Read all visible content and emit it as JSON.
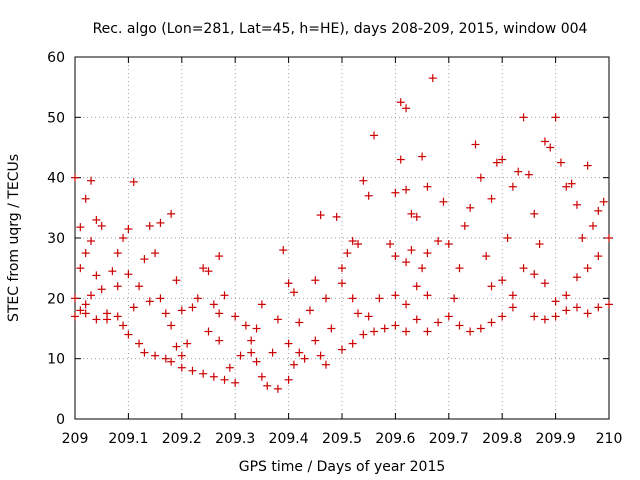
{
  "chart_data": {
    "type": "scatter",
    "title": "Rec. algo (Lon=281, Lat=45, h=HE), days 208-209, 2015, window 004",
    "xlabel": "GPS time / Days of year 2015",
    "ylabel": "STEC from uqrg / TECUs",
    "xlim": [
      209,
      210
    ],
    "ylim": [
      0,
      60
    ],
    "xticks": [
      "209",
      "209.1",
      "209.2",
      "209.3",
      "209.4",
      "209.5",
      "209.6",
      "209.7",
      "209.8",
      "209.9",
      "210"
    ],
    "yticks": [
      "0",
      "10",
      "20",
      "30",
      "40",
      "50",
      "60"
    ],
    "xtick_values": [
      209,
      209.1,
      209.2,
      209.3,
      209.4,
      209.5,
      209.6,
      209.7,
      209.8,
      209.9,
      210
    ],
    "ytick_values": [
      0,
      10,
      20,
      30,
      40,
      50,
      60
    ],
    "grid": true,
    "marker": "+",
    "color": "#cc0000",
    "series": [
      {
        "points": [
          [
            209.0,
            40.0
          ],
          [
            209.01,
            31.8
          ],
          [
            209.02,
            36.5
          ],
          [
            209.03,
            39.5
          ],
          [
            209.04,
            33.0
          ],
          [
            209.01,
            25.0
          ],
          [
            209.02,
            27.5
          ],
          [
            209.03,
            29.5
          ],
          [
            209.05,
            32.0
          ],
          [
            209.04,
            23.8
          ],
          [
            209.0,
            20.0
          ],
          [
            209.01,
            18.0
          ],
          [
            209.02,
            19.0
          ],
          [
            209.03,
            20.5
          ],
          [
            209.05,
            21.5
          ],
          [
            209.0,
            17.0
          ],
          [
            209.02,
            17.5
          ],
          [
            209.04,
            16.5
          ],
          [
            209.06,
            16.5
          ],
          [
            209.07,
            24.5
          ],
          [
            209.08,
            27.5
          ],
          [
            209.09,
            30.0
          ],
          [
            209.1,
            31.5
          ],
          [
            209.08,
            22.0
          ],
          [
            209.1,
            24.0
          ],
          [
            209.06,
            17.5
          ],
          [
            209.08,
            17.0
          ],
          [
            209.09,
            15.5
          ],
          [
            209.1,
            14.0
          ],
          [
            209.11,
            18.5
          ],
          [
            209.11,
            39.3
          ],
          [
            209.12,
            22.0
          ],
          [
            209.13,
            26.5
          ],
          [
            209.14,
            32.0
          ],
          [
            209.15,
            27.5
          ],
          [
            209.16,
            32.5
          ],
          [
            209.14,
            19.5
          ],
          [
            209.16,
            20.0
          ],
          [
            209.17,
            17.5
          ],
          [
            209.12,
            12.5
          ],
          [
            209.13,
            11.0
          ],
          [
            209.15,
            10.5
          ],
          [
            209.17,
            10.0
          ],
          [
            209.18,
            34.0
          ],
          [
            209.19,
            23.0
          ],
          [
            209.2,
            18.0
          ],
          [
            209.18,
            15.5
          ],
          [
            209.19,
            12.0
          ],
          [
            209.21,
            12.5
          ],
          [
            209.2,
            10.5
          ],
          [
            209.18,
            9.5
          ],
          [
            209.2,
            8.5
          ],
          [
            209.22,
            8.0
          ],
          [
            209.24,
            7.5
          ],
          [
            209.22,
            18.5
          ],
          [
            209.23,
            20.0
          ],
          [
            209.24,
            25.0
          ],
          [
            209.25,
            24.5
          ],
          [
            209.26,
            19.0
          ],
          [
            209.27,
            27.0
          ],
          [
            209.27,
            17.5
          ],
          [
            209.28,
            20.5
          ],
          [
            209.25,
            14.5
          ],
          [
            209.27,
            13.0
          ],
          [
            209.26,
            7.0
          ],
          [
            209.28,
            6.5
          ],
          [
            209.3,
            6.0
          ],
          [
            209.29,
            8.5
          ],
          [
            209.31,
            10.5
          ],
          [
            209.33,
            13.0
          ],
          [
            209.3,
            17.0
          ],
          [
            209.32,
            15.5
          ],
          [
            209.34,
            15.0
          ],
          [
            209.35,
            19.0
          ],
          [
            209.33,
            11.0
          ],
          [
            209.34,
            9.5
          ],
          [
            209.35,
            7.0
          ],
          [
            209.36,
            5.5
          ],
          [
            209.38,
            5.0
          ],
          [
            209.37,
            11.0
          ],
          [
            209.38,
            16.5
          ],
          [
            209.39,
            28.0
          ],
          [
            209.4,
            22.5
          ],
          [
            209.41,
            21.0
          ],
          [
            209.42,
            16.0
          ],
          [
            209.4,
            12.5
          ],
          [
            209.42,
            11.0
          ],
          [
            209.41,
            9.0
          ],
          [
            209.43,
            10.0
          ],
          [
            209.4,
            6.5
          ],
          [
            209.44,
            18.0
          ],
          [
            209.45,
            23.0
          ],
          [
            209.46,
            33.8
          ],
          [
            209.47,
            20.0
          ],
          [
            209.45,
            13.0
          ],
          [
            209.46,
            10.5
          ],
          [
            209.48,
            15.0
          ],
          [
            209.47,
            9.0
          ],
          [
            209.49,
            33.5
          ],
          [
            209.5,
            25.0
          ],
          [
            209.51,
            27.5
          ],
          [
            209.52,
            29.5
          ],
          [
            209.53,
            29.0
          ],
          [
            209.5,
            22.5
          ],
          [
            209.52,
            20.0
          ],
          [
            209.54,
            39.5
          ],
          [
            209.55,
            37.0
          ],
          [
            209.56,
            47.0
          ],
          [
            209.57,
            20.0
          ],
          [
            209.53,
            17.5
          ],
          [
            209.55,
            17.0
          ],
          [
            209.5,
            11.5
          ],
          [
            209.52,
            12.5
          ],
          [
            209.54,
            14.0
          ],
          [
            209.56,
            14.5
          ],
          [
            209.58,
            15.0
          ],
          [
            209.59,
            29.0
          ],
          [
            209.6,
            37.5
          ],
          [
            209.61,
            52.5
          ],
          [
            209.62,
            51.5
          ],
          [
            209.61,
            43.0
          ],
          [
            209.62,
            38.0
          ],
          [
            209.63,
            34.0
          ],
          [
            209.64,
            33.5
          ],
          [
            209.65,
            43.5
          ],
          [
            209.66,
            38.5
          ],
          [
            209.67,
            56.5
          ],
          [
            209.6,
            27.0
          ],
          [
            209.62,
            26.0
          ],
          [
            209.63,
            28.0
          ],
          [
            209.65,
            25.0
          ],
          [
            209.66,
            27.5
          ],
          [
            209.6,
            20.5
          ],
          [
            209.62,
            19.0
          ],
          [
            209.64,
            22.0
          ],
          [
            209.66,
            20.5
          ],
          [
            209.6,
            15.5
          ],
          [
            209.62,
            14.5
          ],
          [
            209.64,
            16.5
          ],
          [
            209.66,
            14.5
          ],
          [
            209.68,
            29.5
          ],
          [
            209.69,
            36.0
          ],
          [
            209.7,
            29.0
          ],
          [
            209.71,
            20.0
          ],
          [
            209.72,
            25.0
          ],
          [
            209.73,
            32.0
          ],
          [
            209.74,
            35.0
          ],
          [
            209.75,
            45.5
          ],
          [
            209.76,
            40.0
          ],
          [
            209.68,
            16.0
          ],
          [
            209.7,
            17.0
          ],
          [
            209.72,
            15.5
          ],
          [
            209.74,
            14.5
          ],
          [
            209.76,
            15.0
          ],
          [
            209.77,
            27.0
          ],
          [
            209.78,
            36.5
          ],
          [
            209.79,
            42.5
          ],
          [
            209.8,
            43.0
          ],
          [
            209.81,
            30.0
          ],
          [
            209.82,
            38.5
          ],
          [
            209.83,
            41.0
          ],
          [
            209.84,
            50.0
          ],
          [
            209.78,
            22.0
          ],
          [
            209.8,
            23.0
          ],
          [
            209.82,
            20.5
          ],
          [
            209.84,
            25.0
          ],
          [
            209.78,
            16.0
          ],
          [
            209.8,
            17.0
          ],
          [
            209.82,
            18.5
          ],
          [
            209.85,
            40.5
          ],
          [
            209.86,
            34.0
          ],
          [
            209.87,
            29.0
          ],
          [
            209.88,
            46.0
          ],
          [
            209.89,
            45.0
          ],
          [
            209.9,
            50.0
          ],
          [
            209.91,
            42.5
          ],
          [
            209.86,
            24.0
          ],
          [
            209.88,
            22.5
          ],
          [
            209.9,
            19.5
          ],
          [
            209.86,
            17.0
          ],
          [
            209.88,
            16.5
          ],
          [
            209.9,
            17.0
          ],
          [
            209.92,
            38.5
          ],
          [
            209.93,
            39.0
          ],
          [
            209.94,
            35.5
          ],
          [
            209.95,
            30.0
          ],
          [
            209.96,
            42.0
          ],
          [
            209.97,
            32.0
          ],
          [
            209.98,
            34.5
          ],
          [
            209.99,
            36.0
          ],
          [
            210.0,
            30.0
          ],
          [
            209.92,
            20.5
          ],
          [
            209.94,
            23.5
          ],
          [
            209.96,
            25.0
          ],
          [
            209.98,
            27.0
          ],
          [
            209.92,
            18.0
          ],
          [
            209.94,
            18.5
          ],
          [
            209.96,
            17.5
          ],
          [
            209.98,
            18.5
          ],
          [
            210.0,
            19.0
          ]
        ]
      }
    ]
  }
}
